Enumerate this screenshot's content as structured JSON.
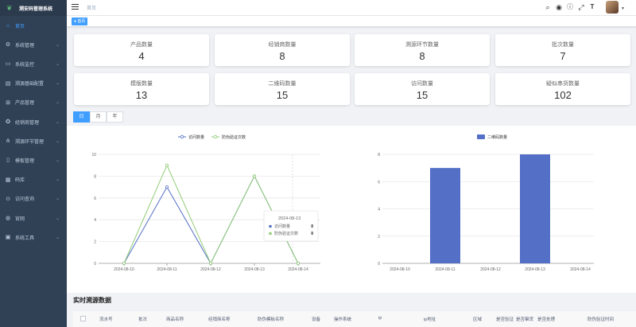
{
  "app": {
    "title": "溯安码管理系统"
  },
  "sidebar": {
    "items": [
      {
        "label": "首页",
        "icon": "dashboard-icon",
        "active": true,
        "chev": false
      },
      {
        "label": "系统管理",
        "icon": "gear-icon",
        "chev": true
      },
      {
        "label": "系统监控",
        "icon": "monitor-icon",
        "chev": true
      },
      {
        "label": "溯源基础配置",
        "icon": "config-icon",
        "chev": true
      },
      {
        "label": "产品管理",
        "icon": "cart-icon",
        "chev": true
      },
      {
        "label": "经销商管理",
        "icon": "dealer-icon",
        "chev": true
      },
      {
        "label": "溯源环节管理",
        "icon": "flow-icon",
        "chev": true
      },
      {
        "label": "模板管理",
        "icon": "template-icon",
        "chev": true
      },
      {
        "label": "码库",
        "icon": "qrcode-icon",
        "chev": true
      },
      {
        "label": "访问查询",
        "icon": "search-icon",
        "chev": true
      },
      {
        "label": "官网",
        "icon": "globe-icon",
        "chev": true
      },
      {
        "label": "系统工具",
        "icon": "toolbox-icon",
        "chev": true
      }
    ]
  },
  "header": {
    "breadcrumb": "首页",
    "tag": "首页",
    "icons": [
      "search-icon",
      "github-icon",
      "help-icon",
      "fullscreen-icon",
      "font-size-icon"
    ]
  },
  "stats": [
    {
      "label": "产品数量",
      "value": "4"
    },
    {
      "label": "经销商数量",
      "value": "8"
    },
    {
      "label": "溯源环节数量",
      "value": "8"
    },
    {
      "label": "批次数量",
      "value": "7"
    },
    {
      "label": "模版数量",
      "value": "13"
    },
    {
      "label": "二维码数量",
      "value": "15"
    },
    {
      "label": "访问数量",
      "value": "15"
    },
    {
      "label": "疑似串货数量",
      "value": "102"
    }
  ],
  "periods": [
    {
      "label": "日",
      "active": true
    },
    {
      "label": "月",
      "active": false
    },
    {
      "label": "年",
      "active": false
    }
  ],
  "chart_data": [
    {
      "type": "line",
      "x": [
        "2024-08-10",
        "2024-08-11",
        "2024-08-12",
        "2024-08-13",
        "2024-08-14"
      ],
      "series": [
        {
          "name": "访问数量",
          "values": [
            0,
            7,
            0,
            8,
            0
          ],
          "color": "#5470c6"
        },
        {
          "name": "防伪验证次数",
          "values": [
            0,
            9,
            0,
            8,
            0
          ],
          "color": "#91cc75"
        }
      ],
      "ylim": [
        0,
        10
      ],
      "yticks": [
        0,
        2,
        4,
        6,
        8,
        10
      ],
      "legend": "top-center",
      "tooltip": {
        "title": "2024-08-13",
        "rows": [
          {
            "name": "访问数量",
            "value": "8"
          },
          {
            "name": "防伪验证次数",
            "value": "8"
          }
        ]
      }
    },
    {
      "type": "bar",
      "categories": [
        "2024-08-10",
        "2024-08-11",
        "2024-08-12",
        "2024-08-13",
        "2024-08-14"
      ],
      "series": [
        {
          "name": "二维码数量",
          "values": [
            0,
            7,
            0,
            8,
            0
          ],
          "color": "#5470c6"
        }
      ],
      "ylim": [
        0,
        8
      ],
      "yticks": [
        0,
        2,
        4,
        6,
        8
      ],
      "legend": "top-center"
    }
  ],
  "realtime": {
    "title": "实时溯源数据",
    "columns": [
      "流水号",
      "批次",
      "商品名称",
      "经销商名称",
      "防伪模板名称",
      "设备",
      "操作系统",
      "ip",
      "ip地址",
      "区域",
      "是否验证",
      "是否窜货",
      "是否处理",
      "防伪验证时间"
    ]
  }
}
